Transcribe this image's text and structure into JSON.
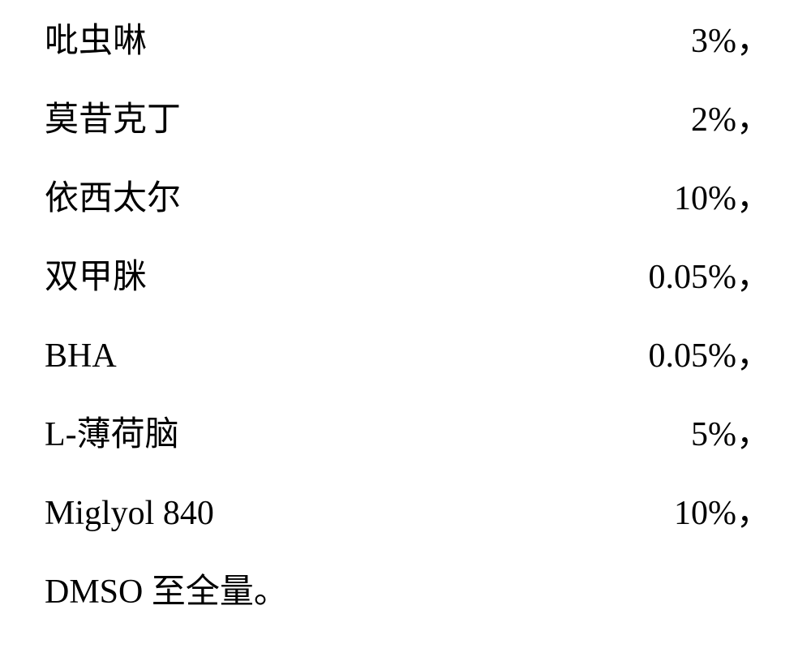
{
  "rows": [
    {
      "label": "吡虫啉",
      "value": "3%，"
    },
    {
      "label": "莫昔克丁",
      "value": "2%，"
    },
    {
      "label": "依西太尔",
      "value": "10%，"
    },
    {
      "label": "双甲脒",
      "value": "0.05%，"
    },
    {
      "label": "BHA",
      "value": "0.05%，"
    },
    {
      "label": "L-薄荷脑",
      "value": "5%，"
    },
    {
      "label": "Miglyol 840",
      "value": "10%，"
    }
  ],
  "final": "DMSO 至全量。"
}
